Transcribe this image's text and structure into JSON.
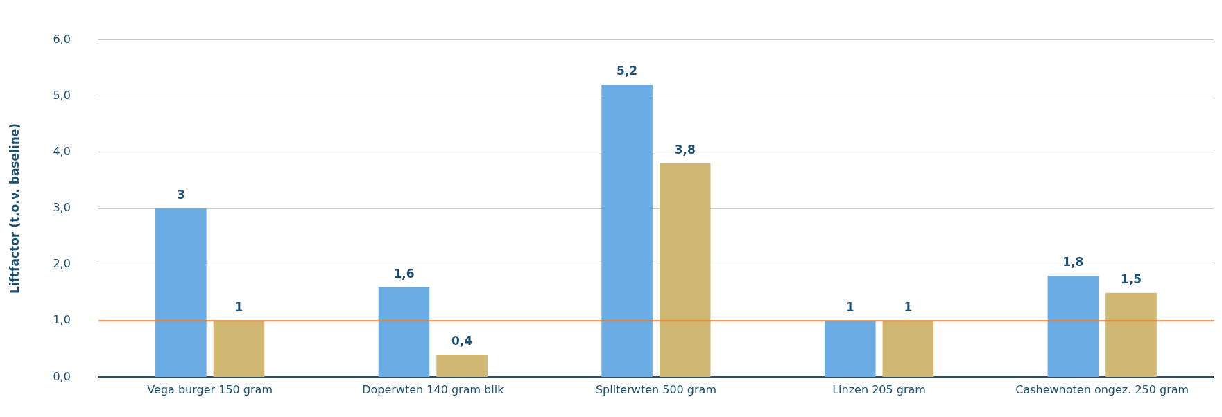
{
  "chart_data": {
    "type": "bar",
    "ylabel": "Liftfactor (t.o.v. baseline)",
    "categories": [
      "Vega burger 150 gram",
      "Doperwten 140 gram blik",
      "Spliterwten 500 gram",
      "Linzen 205 gram",
      "Cashewnoten ongez. 250 gram"
    ],
    "series": [
      {
        "color": "#6aace3",
        "values": [
          3,
          1.6,
          5.2,
          1,
          1.8
        ],
        "value_labels": [
          "3",
          "1,6",
          "5,2",
          "1",
          "1,8"
        ]
      },
      {
        "color": "#d0b872",
        "values": [
          1,
          0.4,
          3.8,
          1,
          1.5
        ],
        "value_labels": [
          "1",
          "0,4",
          "3,8",
          "1",
          "1,5"
        ]
      }
    ],
    "ylim": [
      0,
      6
    ],
    "yticks": [
      {
        "value": 0,
        "label": "0,0"
      },
      {
        "value": 1,
        "label": "1,0"
      },
      {
        "value": 2,
        "label": "2,0"
      },
      {
        "value": 3,
        "label": "3,0"
      },
      {
        "value": 4,
        "label": "4,0"
      },
      {
        "value": 5,
        "label": "5,0"
      },
      {
        "value": 6,
        "label": "6,0"
      }
    ],
    "grid": "y",
    "legend": false,
    "ref_lines": [
      {
        "axis": "y",
        "value": 1,
        "color": "#f47c20"
      }
    ]
  }
}
